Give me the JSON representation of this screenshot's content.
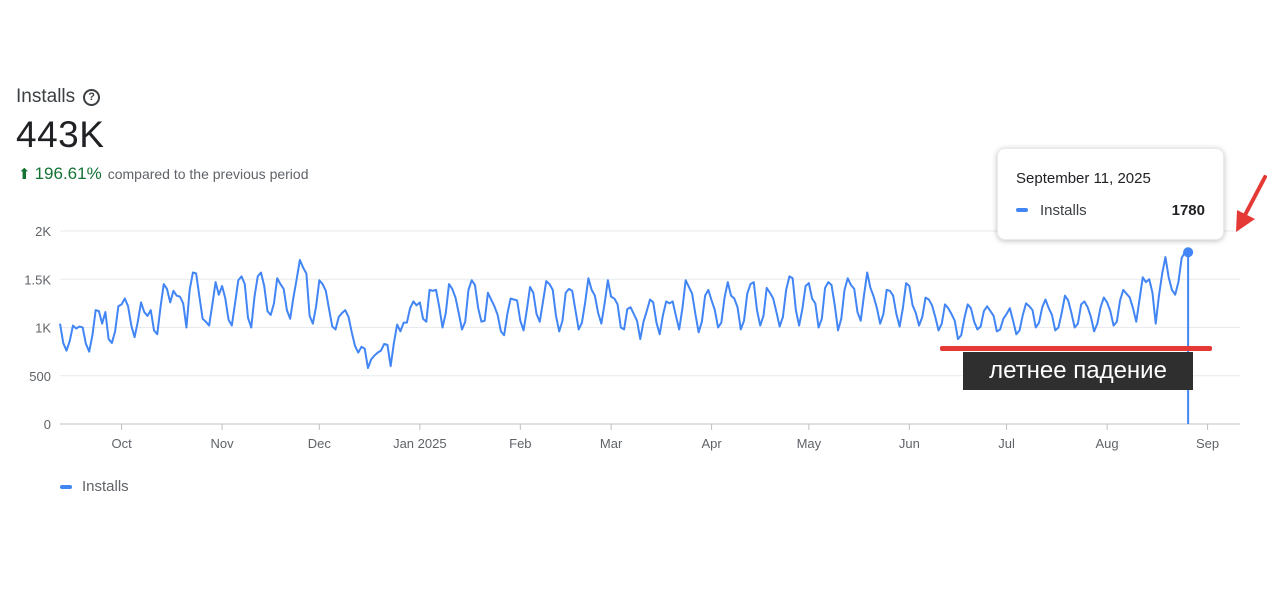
{
  "header": {
    "title": "Installs",
    "help_icon": "help-circle-icon",
    "total": "443K",
    "change_icon": "arrow-up-icon",
    "change_pct": "196.61%",
    "change_text": "compared to the previous period"
  },
  "colors": {
    "series": "#4285f4",
    "positive": "#137333",
    "annotation_line": "#e53935",
    "annotation_bg": "#2f2f2f",
    "gridline": "#e8eaed"
  },
  "tooltip": {
    "date": "September 11, 2025",
    "series": "Installs",
    "value": "1780"
  },
  "annotation": {
    "label": "летнее падение",
    "arrow_icon": "red-arrow-icon"
  },
  "legend": {
    "label": "Installs"
  },
  "chart_data": {
    "type": "line",
    "title": "Installs",
    "xlabel": "",
    "ylabel": "",
    "ylim": [
      0,
      2000
    ],
    "y_ticks": [
      {
        "value": 0,
        "label": "0"
      },
      {
        "value": 500,
        "label": "500"
      },
      {
        "value": 1000,
        "label": "1K"
      },
      {
        "value": 1500,
        "label": "1.5K"
      },
      {
        "value": 2000,
        "label": "2K"
      }
    ],
    "x_start": "2024-09-12",
    "x_end": "2025-09-11",
    "x_ticks": [
      {
        "date": "2024-10-01",
        "label": "Oct"
      },
      {
        "date": "2024-11-01",
        "label": "Nov"
      },
      {
        "date": "2024-12-01",
        "label": "Dec"
      },
      {
        "date": "2025-01-01",
        "label": "Jan 2025"
      },
      {
        "date": "2025-02-01",
        "label": "Feb"
      },
      {
        "date": "2025-03-01",
        "label": "Mar"
      },
      {
        "date": "2025-04-01",
        "label": "Apr"
      },
      {
        "date": "2025-05-01",
        "label": "May"
      },
      {
        "date": "2025-06-01",
        "label": "Jun"
      },
      {
        "date": "2025-07-01",
        "label": "Jul"
      },
      {
        "date": "2025-08-01",
        "label": "Aug"
      },
      {
        "date": "2025-09-01",
        "label": "Sep"
      }
    ],
    "grid": true,
    "legend_position": "bottom-left",
    "series": [
      {
        "name": "Installs",
        "interval": "daily",
        "start_date": "2024-09-12",
        "values": [
          1040,
          840,
          760,
          860,
          1020,
          990,
          1010,
          1000,
          830,
          750,
          920,
          1180,
          1170,
          1040,
          1160,
          880,
          840,
          960,
          1220,
          1240,
          1300,
          1220,
          1020,
          900,
          1060,
          1260,
          1160,
          1120,
          1180,
          970,
          930,
          1210,
          1450,
          1400,
          1260,
          1380,
          1330,
          1320,
          1250,
          1000,
          1390,
          1570,
          1560,
          1320,
          1090,
          1060,
          1020,
          1240,
          1470,
          1340,
          1430,
          1300,
          1080,
          1020,
          1250,
          1490,
          1530,
          1450,
          1100,
          1000,
          1320,
          1530,
          1570,
          1430,
          1170,
          1130,
          1250,
          1510,
          1450,
          1400,
          1180,
          1090,
          1310,
          1500,
          1700,
          1620,
          1560,
          1120,
          1040,
          1220,
          1490,
          1450,
          1380,
          1190,
          1010,
          980,
          1110,
          1150,
          1180,
          1110,
          950,
          810,
          740,
          800,
          780,
          580,
          670,
          710,
          740,
          760,
          830,
          820,
          600,
          840,
          1030,
          960,
          1050,
          1050,
          1200,
          1270,
          1230,
          1260,
          1090,
          1060,
          1390,
          1380,
          1390,
          1210,
          1000,
          1150,
          1450,
          1400,
          1310,
          1150,
          980,
          1060,
          1390,
          1490,
          1440,
          1200,
          1060,
          1070,
          1360,
          1290,
          1220,
          1130,
          960,
          920,
          1140,
          1300,
          1290,
          1280,
          1070,
          970,
          1180,
          1420,
          1360,
          1140,
          1060,
          1270,
          1480,
          1450,
          1390,
          1120,
          960,
          1070,
          1360,
          1400,
          1380,
          1180,
          980,
          1050,
          1260,
          1510,
          1390,
          1330,
          1150,
          1040,
          1250,
          1490,
          1320,
          1300,
          1240,
          1000,
          980,
          1190,
          1210,
          1140,
          1070,
          880,
          1060,
          1170,
          1290,
          1260,
          1050,
          930,
          1130,
          1270,
          1250,
          1270,
          1120,
          980,
          1200,
          1490,
          1420,
          1350,
          1140,
          950,
          1060,
          1330,
          1390,
          1280,
          1180,
          1000,
          1050,
          1310,
          1470,
          1330,
          1300,
          1210,
          980,
          1070,
          1350,
          1450,
          1470,
          1180,
          1020,
          1120,
          1410,
          1360,
          1300,
          1160,
          1010,
          1110,
          1390,
          1530,
          1510,
          1180,
          1020,
          1190,
          1430,
          1460,
          1300,
          1250,
          1000,
          1090,
          1410,
          1470,
          1440,
          1230,
          970,
          1090,
          1390,
          1510,
          1440,
          1400,
          1160,
          1070,
          1330,
          1570,
          1410,
          1320,
          1200,
          1040,
          1140,
          1390,
          1380,
          1330,
          1140,
          1010,
          1200,
          1460,
          1430,
          1230,
          1150,
          1020,
          1110,
          1310,
          1290,
          1230,
          1110,
          970,
          1040,
          1240,
          1200,
          1140,
          1070,
          880,
          920,
          1100,
          1240,
          1200,
          1060,
          980,
          1010,
          1170,
          1220,
          1170,
          1120,
          960,
          980,
          1090,
          1140,
          1200,
          1070,
          930,
          970,
          1130,
          1250,
          1220,
          1180,
          1000,
          1050,
          1210,
          1290,
          1200,
          1130,
          970,
          1000,
          1150,
          1330,
          1280,
          1150,
          1000,
          1040,
          1240,
          1270,
          1210,
          1110,
          960,
          1040,
          1210,
          1310,
          1260,
          1170,
          1020,
          1060,
          1280,
          1390,
          1350,
          1310,
          1200,
          1060,
          1290,
          1520,
          1470,
          1500,
          1360,
          1040,
          1330,
          1560,
          1730,
          1520,
          1390,
          1340,
          1470,
          1720,
          1780,
          1780
        ]
      }
    ]
  }
}
